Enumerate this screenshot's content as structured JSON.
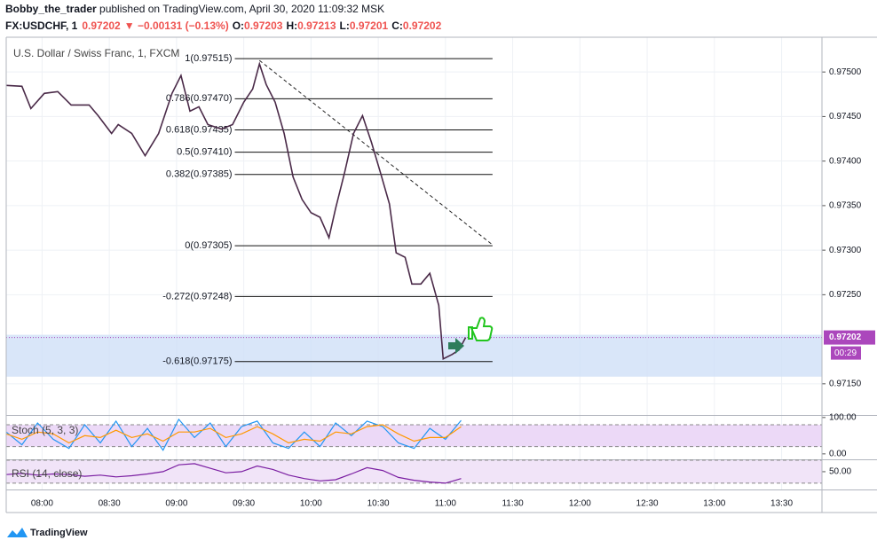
{
  "header": {
    "author": "Bobby_the_trader",
    "published": " published on TradingView.com, April 30, 2020 11:09:32 MSK",
    "symbol": "FX:USDCHF, 1",
    "last": "0.97202",
    "change": "▼ −0.00131 (−0.13%)",
    "ohlc": [
      {
        "label": "O:",
        "value": "0.97203"
      },
      {
        "label": "H:",
        "value": "0.97213"
      },
      {
        "label": "L:",
        "value": "0.97201"
      },
      {
        "label": "C:",
        "value": "0.97202"
      }
    ]
  },
  "footer": {
    "brand": "TradingView"
  },
  "chart_data": [
    {
      "type": "line",
      "title": "U.S. Dollar / Swiss Franc, 1, FXCM",
      "x": [
        "07:44",
        "07:51",
        "07:55",
        "08:01",
        "08:07",
        "08:13",
        "08:21",
        "08:25",
        "08:31",
        "08:34",
        "08:40",
        "08:46",
        "08:52",
        "08:58",
        "09:02",
        "09:06",
        "09:10",
        "09:14",
        "09:20",
        "09:25",
        "09:30",
        "09:34",
        "09:37",
        "09:40",
        "09:44",
        "09:48",
        "09:52",
        "09:56",
        "10:00",
        "10:04",
        "10:08",
        "10:11",
        "10:15",
        "10:19",
        "10:23",
        "10:27",
        "10:31",
        "10:35",
        "10:38",
        "10:42",
        "10:45",
        "10:49",
        "10:53",
        "10:57",
        "10:59",
        "11:03",
        "11:06",
        "11:09"
      ],
      "series": [
        {
          "color": "#4a2a48",
          "values": [
            0.97485,
            0.97484,
            0.97459,
            0.97476,
            0.97478,
            0.97463,
            0.97463,
            0.97451,
            0.97431,
            0.97441,
            0.97431,
            0.97406,
            0.97431,
            0.97476,
            0.97496,
            0.97456,
            0.97461,
            0.97441,
            0.97436,
            0.97441,
            0.97466,
            0.97481,
            0.97509,
            0.97486,
            0.97466,
            0.97431,
            0.97382,
            0.97357,
            0.97342,
            0.97337,
            0.97314,
            0.97347,
            0.97387,
            0.97431,
            0.97451,
            0.97421,
            0.97387,
            0.97352,
            0.97297,
            0.97292,
            0.97262,
            0.97262,
            0.97274,
            0.97238,
            0.97178,
            0.97183,
            0.97188,
            0.97202
          ]
        }
      ],
      "xlim": [
        "07:44",
        "13:48"
      ],
      "xticks": [
        "08:00",
        "08:30",
        "09:00",
        "09:30",
        "10:00",
        "10:30",
        "11:00",
        "11:30",
        "12:00",
        "12:30",
        "13:00",
        "13:30"
      ],
      "ylim": [
        0.97115,
        0.97539
      ],
      "yticks": [
        {
          "value": 0.975,
          "label": "0.97500"
        },
        {
          "value": 0.9745,
          "label": "0.97450"
        },
        {
          "value": 0.974,
          "label": "0.97400"
        },
        {
          "value": 0.9735,
          "label": "0.97350"
        },
        {
          "value": 0.973,
          "label": "0.97300"
        },
        {
          "value": 0.9725,
          "label": "0.97250"
        },
        {
          "value": 0.9715,
          "label": "0.97150"
        }
      ],
      "grid": true,
      "last_price": {
        "value": 0.97202,
        "label": "0.97202",
        "color": "#ab47bc"
      },
      "countdown": "00:29",
      "fib_range": [
        "09:26",
        "11:21"
      ],
      "fib_levels": [
        {
          "value": 0.97515,
          "label": "1(0.97515)"
        },
        {
          "value": 0.9747,
          "label": "0.786(0.97470)"
        },
        {
          "value": 0.97435,
          "label": "0.618(0.97435)"
        },
        {
          "value": 0.9741,
          "label": "0.5(0.97410)"
        },
        {
          "value": 0.97385,
          "label": "0.382(0.97385)"
        },
        {
          "value": 0.97305,
          "label": "0(0.97305)"
        },
        {
          "value": 0.97248,
          "label": "-0.272(0.97248)"
        },
        {
          "value": 0.97175,
          "label": "-0.618(0.97175)"
        }
      ],
      "trend_line": {
        "x": [
          "09:37",
          "11:21"
        ],
        "values": [
          0.97513,
          0.97306
        ]
      },
      "zone": {
        "values": [
          0.97158,
          0.97205
        ],
        "color": "#cfe0f7"
      }
    },
    {
      "type": "line",
      "title": "Stoch (5, 3, 3)",
      "x": [
        "07:44",
        "07:51",
        "07:58",
        "08:05",
        "08:12",
        "08:19",
        "08:26",
        "08:33",
        "08:40",
        "08:47",
        "08:54",
        "09:01",
        "09:08",
        "09:15",
        "09:22",
        "09:29",
        "09:36",
        "09:43",
        "09:50",
        "09:57",
        "10:04",
        "10:11",
        "10:18",
        "10:25",
        "10:32",
        "10:39",
        "10:46",
        "10:53",
        "11:00",
        "11:07"
      ],
      "series": [
        {
          "color": "#2196f3",
          "values": [
            60,
            25,
            85,
            40,
            15,
            80,
            30,
            90,
            20,
            70,
            10,
            95,
            45,
            85,
            20,
            75,
            90,
            30,
            15,
            60,
            20,
            85,
            50,
            90,
            75,
            30,
            15,
            70,
            40,
            92
          ]
        },
        {
          "color": "#ff9800",
          "values": [
            55,
            40,
            60,
            55,
            30,
            50,
            45,
            65,
            45,
            55,
            35,
            60,
            60,
            70,
            45,
            55,
            75,
            55,
            30,
            40,
            35,
            60,
            55,
            75,
            80,
            55,
            35,
            45,
            45,
            75
          ]
        }
      ],
      "ylim": [
        -15,
        102
      ],
      "yticks": [
        {
          "value": 100,
          "label": "100.00"
        },
        {
          "value": 0,
          "label": "0.00"
        }
      ],
      "bands": [
        20,
        80
      ],
      "band_color": "#ecd9f7"
    },
    {
      "type": "line",
      "title": "RSI (14, close)",
      "x": [
        "07:44",
        "07:51",
        "07:58",
        "08:05",
        "08:12",
        "08:19",
        "08:26",
        "08:33",
        "08:40",
        "08:47",
        "08:54",
        "09:01",
        "09:08",
        "09:15",
        "09:22",
        "09:29",
        "09:36",
        "09:43",
        "09:50",
        "09:57",
        "10:04",
        "10:11",
        "10:18",
        "10:25",
        "10:32",
        "10:39",
        "10:46",
        "10:53",
        "11:00",
        "11:07"
      ],
      "series": [
        {
          "color": "#7b1fa2",
          "values": [
            45,
            47,
            44,
            46,
            45,
            42,
            44,
            41,
            43,
            46,
            50,
            62,
            64,
            56,
            48,
            50,
            60,
            54,
            44,
            38,
            34,
            36,
            46,
            57,
            52,
            40,
            35,
            32,
            30,
            38
          ]
        }
      ],
      "ylim": [
        19,
        70
      ],
      "yticks": [
        {
          "value": 50,
          "label": "50.00"
        }
      ],
      "bands": [
        30,
        70
      ],
      "band_color": "#f1e4f8"
    }
  ]
}
